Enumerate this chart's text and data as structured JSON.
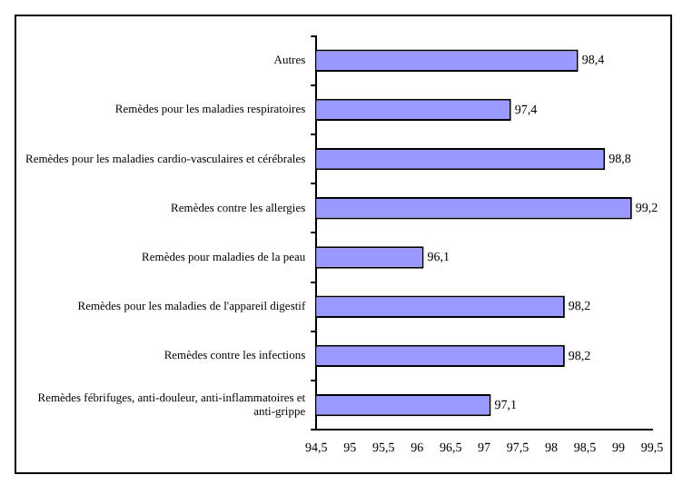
{
  "chart_data": {
    "type": "bar",
    "orientation": "horizontal",
    "categories": [
      "Autres",
      "Remèdes pour les maladies respiratoires",
      "Remèdes pour les maladies cardio-vasculaires et cérébrales",
      "Remèdes contre les allergies",
      "Remèdes pour maladies de la peau",
      "Remèdes pour les maladies de l'appareil digestif",
      "Remèdes contre les infections",
      "Remèdes fébrifuges, anti-douleur, anti-inflammatoires et anti-grippe"
    ],
    "values": [
      98.4,
      97.4,
      98.8,
      99.2,
      96.1,
      98.2,
      98.2,
      97.1
    ],
    "value_labels": [
      "98,4",
      "97,4",
      "98,8",
      "99,2",
      "96,1",
      "98,2",
      "98,2",
      "97,1"
    ],
    "color": "#9999ff",
    "grid": false,
    "legend": false,
    "xlim": [
      94.5,
      99.5
    ],
    "xticks": [
      {
        "value": 94.5,
        "label": "94,5"
      },
      {
        "value": 95,
        "label": "95"
      },
      {
        "value": 95.5,
        "label": "95,5"
      },
      {
        "value": 96,
        "label": "96"
      },
      {
        "value": 96.5,
        "label": "96,5"
      },
      {
        "value": 97,
        "label": "97"
      },
      {
        "value": 97.5,
        "label": "97,5"
      },
      {
        "value": 98,
        "label": "98"
      },
      {
        "value": 98.5,
        "label": "98,5"
      },
      {
        "value": 99,
        "label": "99"
      },
      {
        "value": 99.5,
        "label": "99,5"
      }
    ]
  }
}
